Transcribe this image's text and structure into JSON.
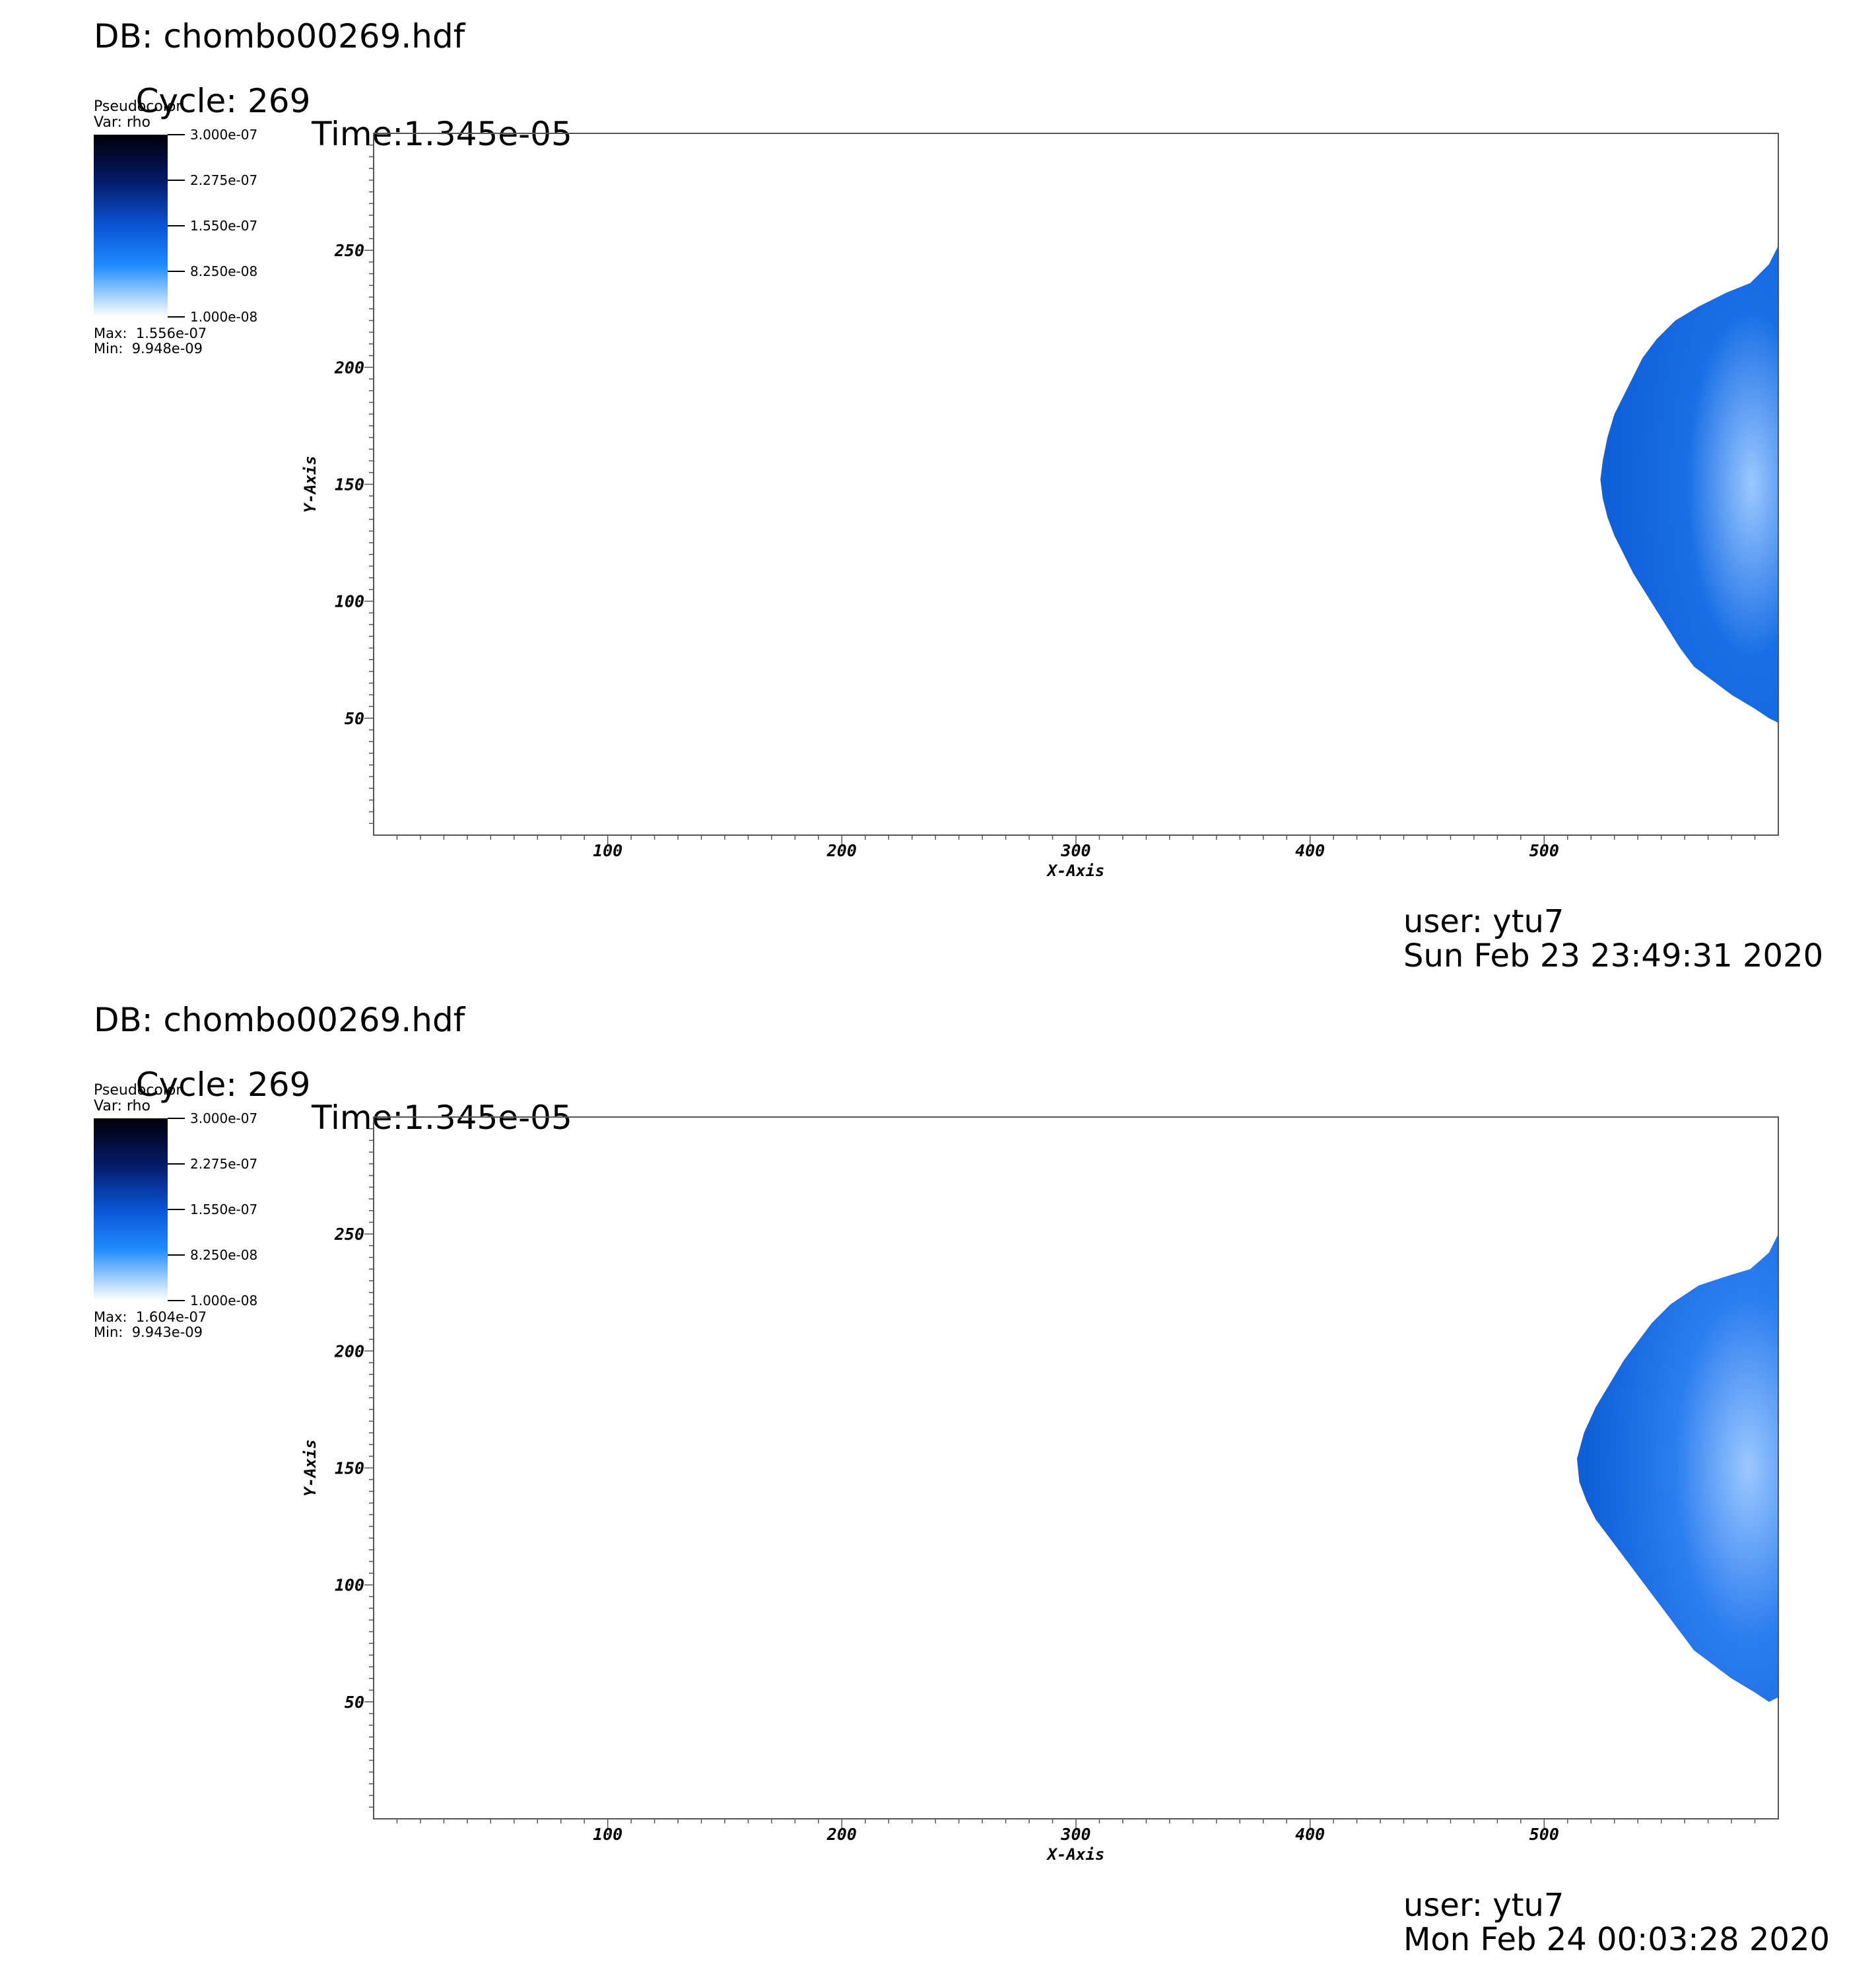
{
  "panels": [
    {
      "db_label": "DB: chombo00269.hdf",
      "cycle_label": "Cycle: 269",
      "time_label": "Time:1.345e-05",
      "legend": {
        "plot_type": "Pseudocolor",
        "variable": "Var: rho",
        "tick_labels": [
          "3.000e-07",
          "2.275e-07",
          "1.550e-07",
          "8.250e-08",
          "1.000e-08"
        ],
        "max_label": "Max:  1.556e-07",
        "min_label": "Min:  9.948e-09",
        "colors": {
          "high": "#000008",
          "mid_high": "#041a66",
          "mid": "#0a54d6",
          "mid_low": "#1f8cff",
          "low": "#ffffff"
        }
      },
      "footer": {
        "user": "user: ytu7",
        "date": "Sun Feb 23 23:49:31 2020"
      }
    },
    {
      "db_label": "DB: chombo00269.hdf",
      "cycle_label": "Cycle: 269",
      "time_label": "Time:1.345e-05",
      "legend": {
        "plot_type": "Pseudocolor",
        "variable": "Var: rho",
        "tick_labels": [
          "3.000e-07",
          "2.275e-07",
          "1.550e-07",
          "8.250e-08",
          "1.000e-08"
        ],
        "max_label": "Max:  1.604e-07",
        "min_label": "Min:  9.943e-09",
        "colors": {
          "high": "#000008",
          "mid_high": "#041a66",
          "mid": "#0a54d6",
          "mid_low": "#1f8cff",
          "low": "#ffffff"
        }
      },
      "footer": {
        "user": "user: ytu7",
        "date": "Mon Feb 24 00:03:28 2020"
      }
    }
  ],
  "chart_data": [
    {
      "type": "heatmap",
      "xlabel": "X-Axis",
      "ylabel": "Y-Axis",
      "xlim": [
        0,
        600
      ],
      "ylim": [
        0,
        300
      ],
      "x_ticks": [
        100,
        200,
        300,
        400,
        500
      ],
      "y_ticks": [
        50,
        100,
        150,
        200,
        250
      ],
      "colorbar_range": [
        1e-08,
        3e-07
      ],
      "field_max": 1.556e-07,
      "field_min": 9.948e-09,
      "region_fill": "#1a6fe6",
      "region_boundary": [
        [
          600,
          252
        ],
        [
          596,
          244
        ],
        [
          588,
          236
        ],
        [
          578,
          232
        ],
        [
          566,
          226
        ],
        [
          556,
          220
        ],
        [
          548,
          212
        ],
        [
          542,
          204
        ],
        [
          538,
          196
        ],
        [
          534,
          188
        ],
        [
          530,
          180
        ],
        [
          527,
          170
        ],
        [
          525,
          160
        ],
        [
          524,
          152
        ],
        [
          525,
          144
        ],
        [
          527,
          136
        ],
        [
          530,
          128
        ],
        [
          534,
          120
        ],
        [
          538,
          112
        ],
        [
          543,
          104
        ],
        [
          548,
          96
        ],
        [
          553,
          88
        ],
        [
          558,
          80
        ],
        [
          564,
          72
        ],
        [
          572,
          66
        ],
        [
          580,
          60
        ],
        [
          590,
          54
        ],
        [
          596,
          50
        ],
        [
          600,
          48
        ]
      ],
      "grid": false
    },
    {
      "type": "heatmap",
      "xlabel": "X-Axis",
      "ylabel": "Y-Axis",
      "xlim": [
        0,
        600
      ],
      "ylim": [
        0,
        300
      ],
      "x_ticks": [
        100,
        200,
        300,
        400,
        500
      ],
      "y_ticks": [
        50,
        100,
        150,
        200,
        250
      ],
      "colorbar_range": [
        1e-08,
        3e-07
      ],
      "field_max": 1.604e-07,
      "field_min": 9.943e-09,
      "region_fill": "#2d7ef0",
      "region_boundary": [
        [
          600,
          250
        ],
        [
          596,
          242
        ],
        [
          588,
          235
        ],
        [
          578,
          232
        ],
        [
          566,
          228
        ],
        [
          554,
          220
        ],
        [
          546,
          212
        ],
        [
          540,
          204
        ],
        [
          534,
          196
        ],
        [
          528,
          186
        ],
        [
          522,
          176
        ],
        [
          517,
          165
        ],
        [
          514,
          154
        ],
        [
          515,
          144
        ],
        [
          518,
          136
        ],
        [
          522,
          128
        ],
        [
          528,
          120
        ],
        [
          534,
          112
        ],
        [
          540,
          104
        ],
        [
          546,
          96
        ],
        [
          552,
          88
        ],
        [
          558,
          80
        ],
        [
          564,
          72
        ],
        [
          572,
          66
        ],
        [
          580,
          60
        ],
        [
          590,
          54
        ],
        [
          596,
          50
        ],
        [
          600,
          52
        ]
      ],
      "grid": false
    }
  ]
}
